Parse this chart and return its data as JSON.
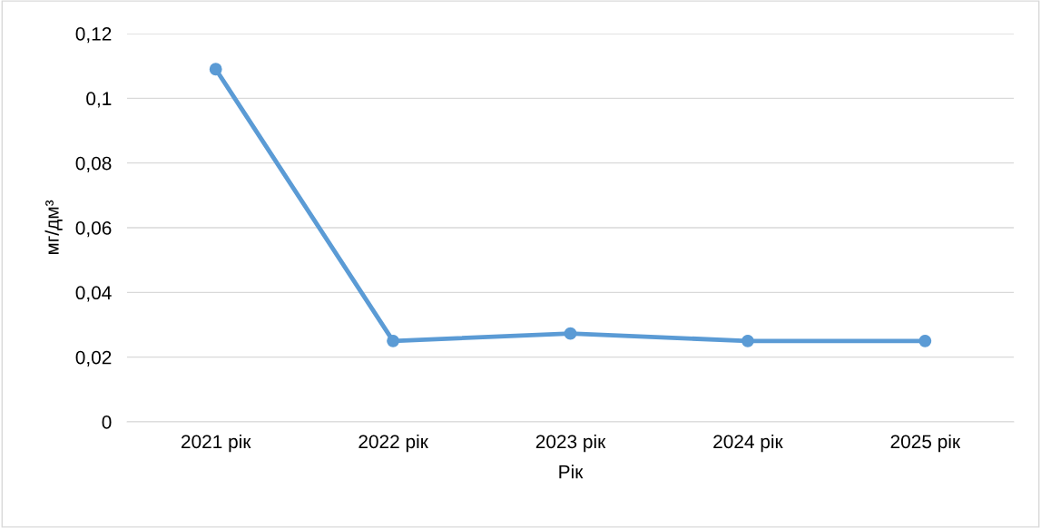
{
  "chart_data": {
    "type": "line",
    "xlabel": "Рік",
    "ylabel": "мг/дм³",
    "categories": [
      "2021 рік",
      "2022 рік",
      "2023 рік",
      "2024 рік",
      "2025 рік"
    ],
    "series": [
      {
        "color": "#5b9bd5",
        "values": [
          0.109,
          0.025,
          0.0273,
          0.025,
          0.025
        ]
      }
    ],
    "ylim": [
      0,
      0.12
    ],
    "yticks": [
      0,
      {
        "value": 0.02,
        "label": "0,02"
      },
      {
        "value": 0.04,
        "label": "0,04"
      },
      {
        "value": 0.06,
        "label": "0,06"
      },
      {
        "value": 0.08,
        "label": "0,08"
      },
      {
        "value": 0.1,
        "label": "0,1"
      },
      {
        "value": 0.12,
        "label": "0,12"
      }
    ],
    "grid": "y",
    "marker": "circle",
    "line_style": "solid",
    "legend": false
  }
}
